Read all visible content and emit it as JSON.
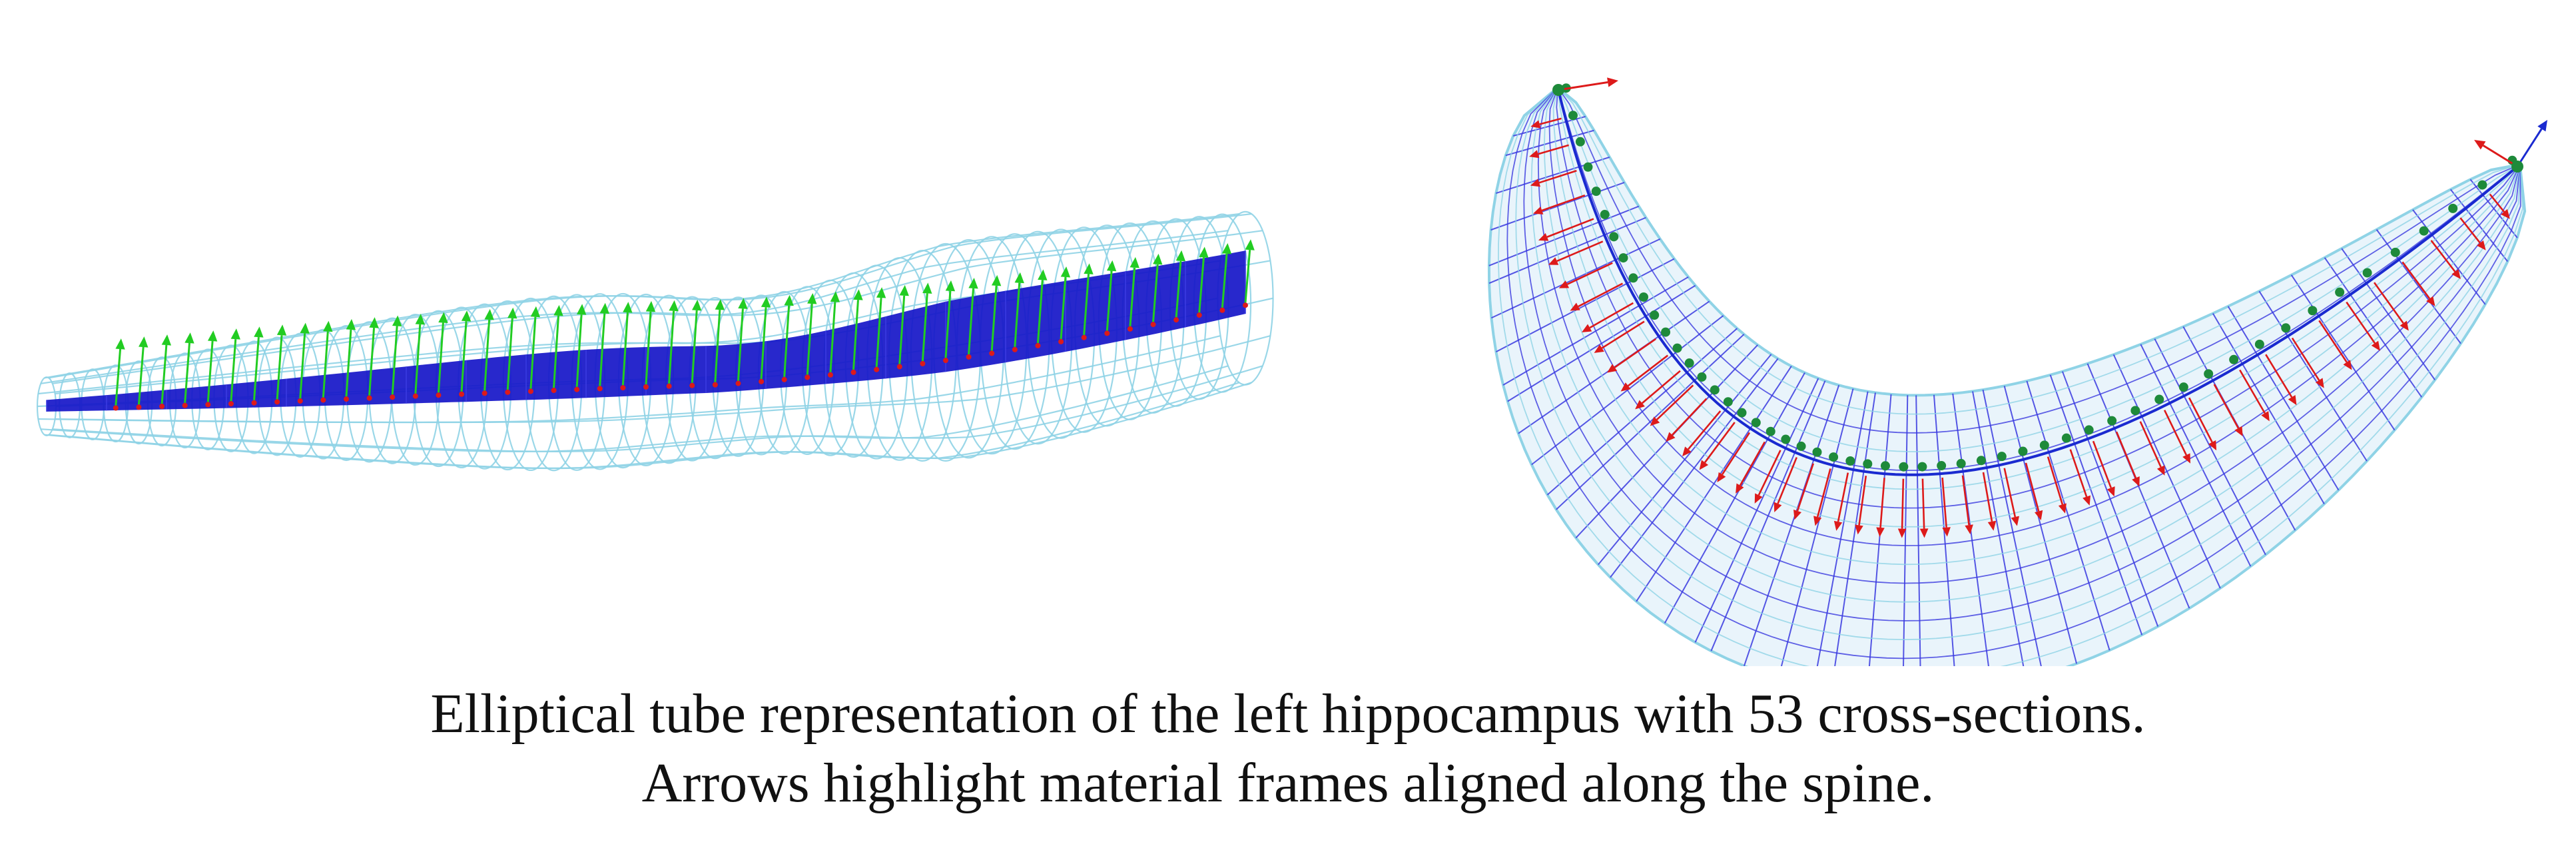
{
  "caption": {
    "line1": "Elliptical tube representation of the left hippocampus with 53 cross-sections.",
    "line2": "Arrows highlight material frames aligned along the spine."
  },
  "figure": {
    "cross_section_count": 53,
    "colors": {
      "outer_mesh": "#8fd3e6",
      "inner_surface": "#1616c8",
      "inner_mesh": "#3a3ae0",
      "frame_up": "#22cc22",
      "frame_normal": "#dd1a1a",
      "frame_tangent": "#1a2ad0",
      "spine_points": "#1e8a3a"
    }
  }
}
